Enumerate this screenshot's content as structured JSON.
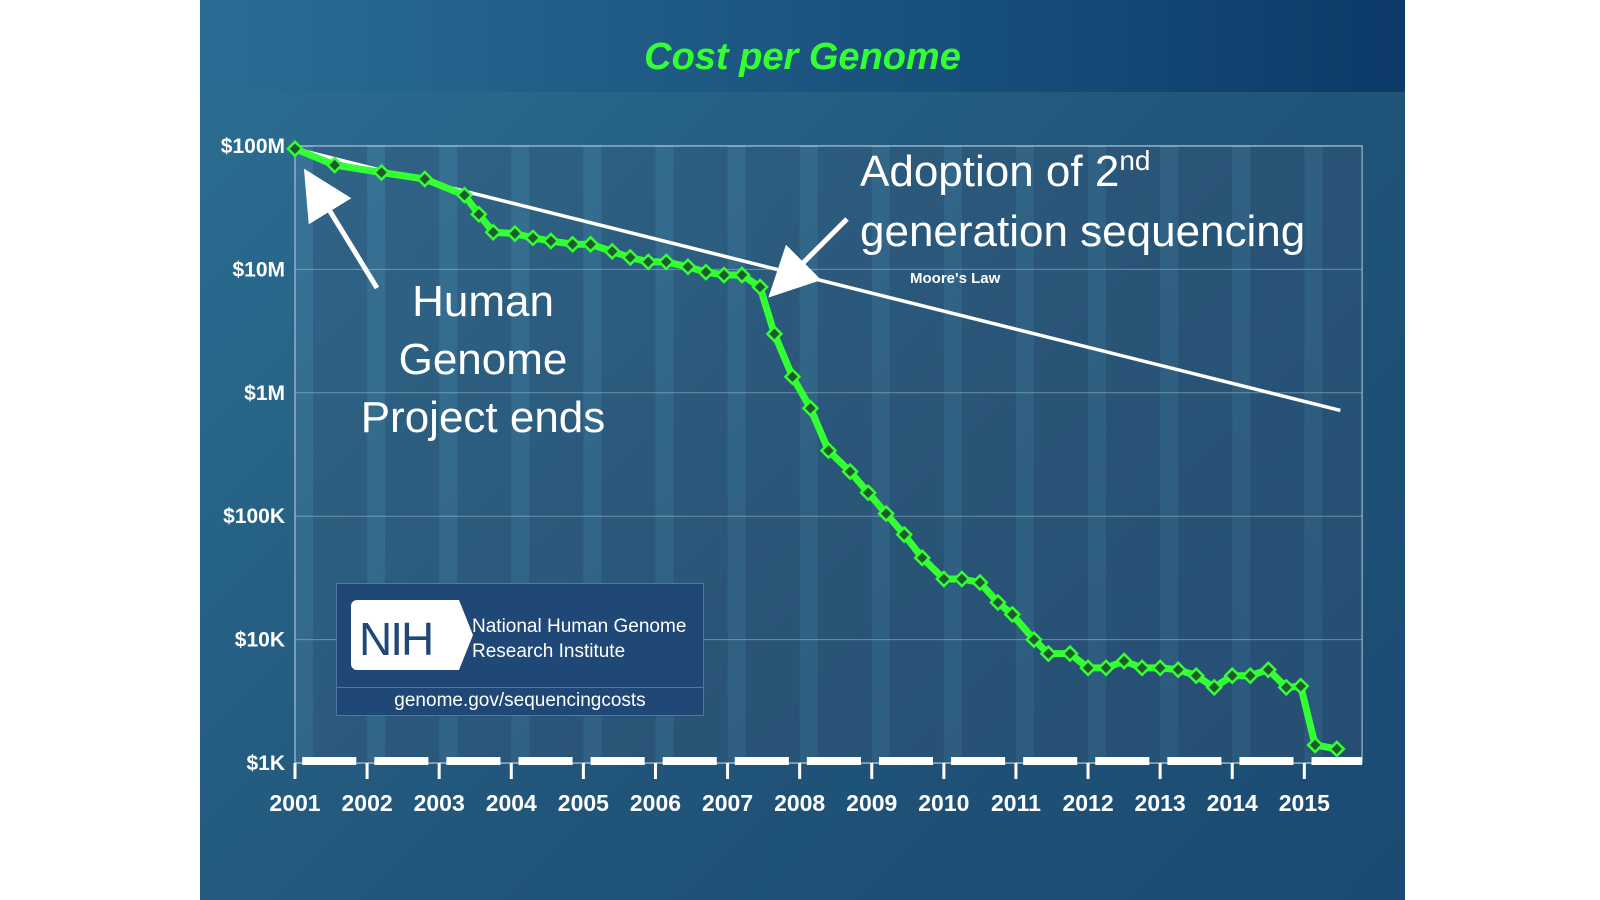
{
  "chart_data": {
    "type": "line",
    "title": "Cost per Genome",
    "xlabel": "",
    "ylabel": "",
    "y_scale": "log",
    "ylim": [
      1000,
      100000000
    ],
    "xlim": [
      2001.0,
      2015.8
    ],
    "y_ticks": [
      {
        "value": 100000000,
        "label": "$100M"
      },
      {
        "value": 10000000,
        "label": "$10M"
      },
      {
        "value": 1000000,
        "label": "$1M"
      },
      {
        "value": 100000,
        "label": "$100K"
      },
      {
        "value": 10000,
        "label": "$10K"
      },
      {
        "value": 1000,
        "label": "$1K"
      }
    ],
    "x_ticks": [
      "2001",
      "2002",
      "2003",
      "2004",
      "2005",
      "2006",
      "2007",
      "2008",
      "2009",
      "2010",
      "2011",
      "2012",
      "2013",
      "2014",
      "2015"
    ],
    "grid": true,
    "colors": {
      "series": "#33ff33",
      "marker": "#1f5a2e",
      "moore": "#ffffff",
      "title": "#33ff33"
    },
    "series": [
      {
        "name": "",
        "x": [
          2001.0,
          2001.55,
          2002.2,
          2002.8,
          2003.35,
          2003.55,
          2003.75,
          2004.05,
          2004.3,
          2004.55,
          2004.85,
          2005.1,
          2005.4,
          2005.65,
          2005.9,
          2006.15,
          2006.45,
          2006.7,
          2006.95,
          2007.2,
          2007.45,
          2007.65,
          2007.9,
          2008.15,
          2008.4,
          2008.7,
          2008.95,
          2009.2,
          2009.45,
          2009.7,
          2010.0,
          2010.25,
          2010.5,
          2010.75,
          2010.95,
          2011.25,
          2011.45,
          2011.75,
          2012.0,
          2012.25,
          2012.5,
          2012.75,
          2013.0,
          2013.25,
          2013.5,
          2013.75,
          2014.0,
          2014.25,
          2014.5,
          2014.75,
          2014.95,
          2015.15,
          2015.45
        ],
        "y": [
          95000000,
          70000000,
          61000000,
          54000000,
          40000000,
          28000000,
          20000000,
          19500000,
          18000000,
          17000000,
          16000000,
          16000000,
          14000000,
          12500000,
          11500000,
          11500000,
          10500000,
          9500000,
          9000000,
          9000000,
          7200000,
          3000000,
          1350000,
          750000,
          340000,
          230000,
          155000,
          105000,
          71000,
          46000,
          31000,
          31000,
          29000,
          20000,
          16000,
          10000,
          7700,
          7700,
          5900,
          5900,
          6700,
          5900,
          5900,
          5700,
          5100,
          4100,
          5100,
          5100,
          5700,
          4100,
          4200,
          1400,
          1300
        ]
      },
      {
        "name": "Moore's Law",
        "x": [
          2001.0,
          2015.5
        ],
        "y": [
          95000000,
          720000
        ]
      }
    ],
    "annotations": [
      {
        "text_lines": [
          "Human",
          "Genome",
          "Project ends"
        ]
      },
      {
        "text_prefix": "Adoption of 2",
        "text_sup": "nd",
        "text_line2": "generation sequencing"
      }
    ]
  },
  "nih": {
    "logo_text": "NIH",
    "name_line1": "National Human Genome",
    "name_line2": "Research Institute",
    "url": "genome.gov/sequencingcosts"
  }
}
